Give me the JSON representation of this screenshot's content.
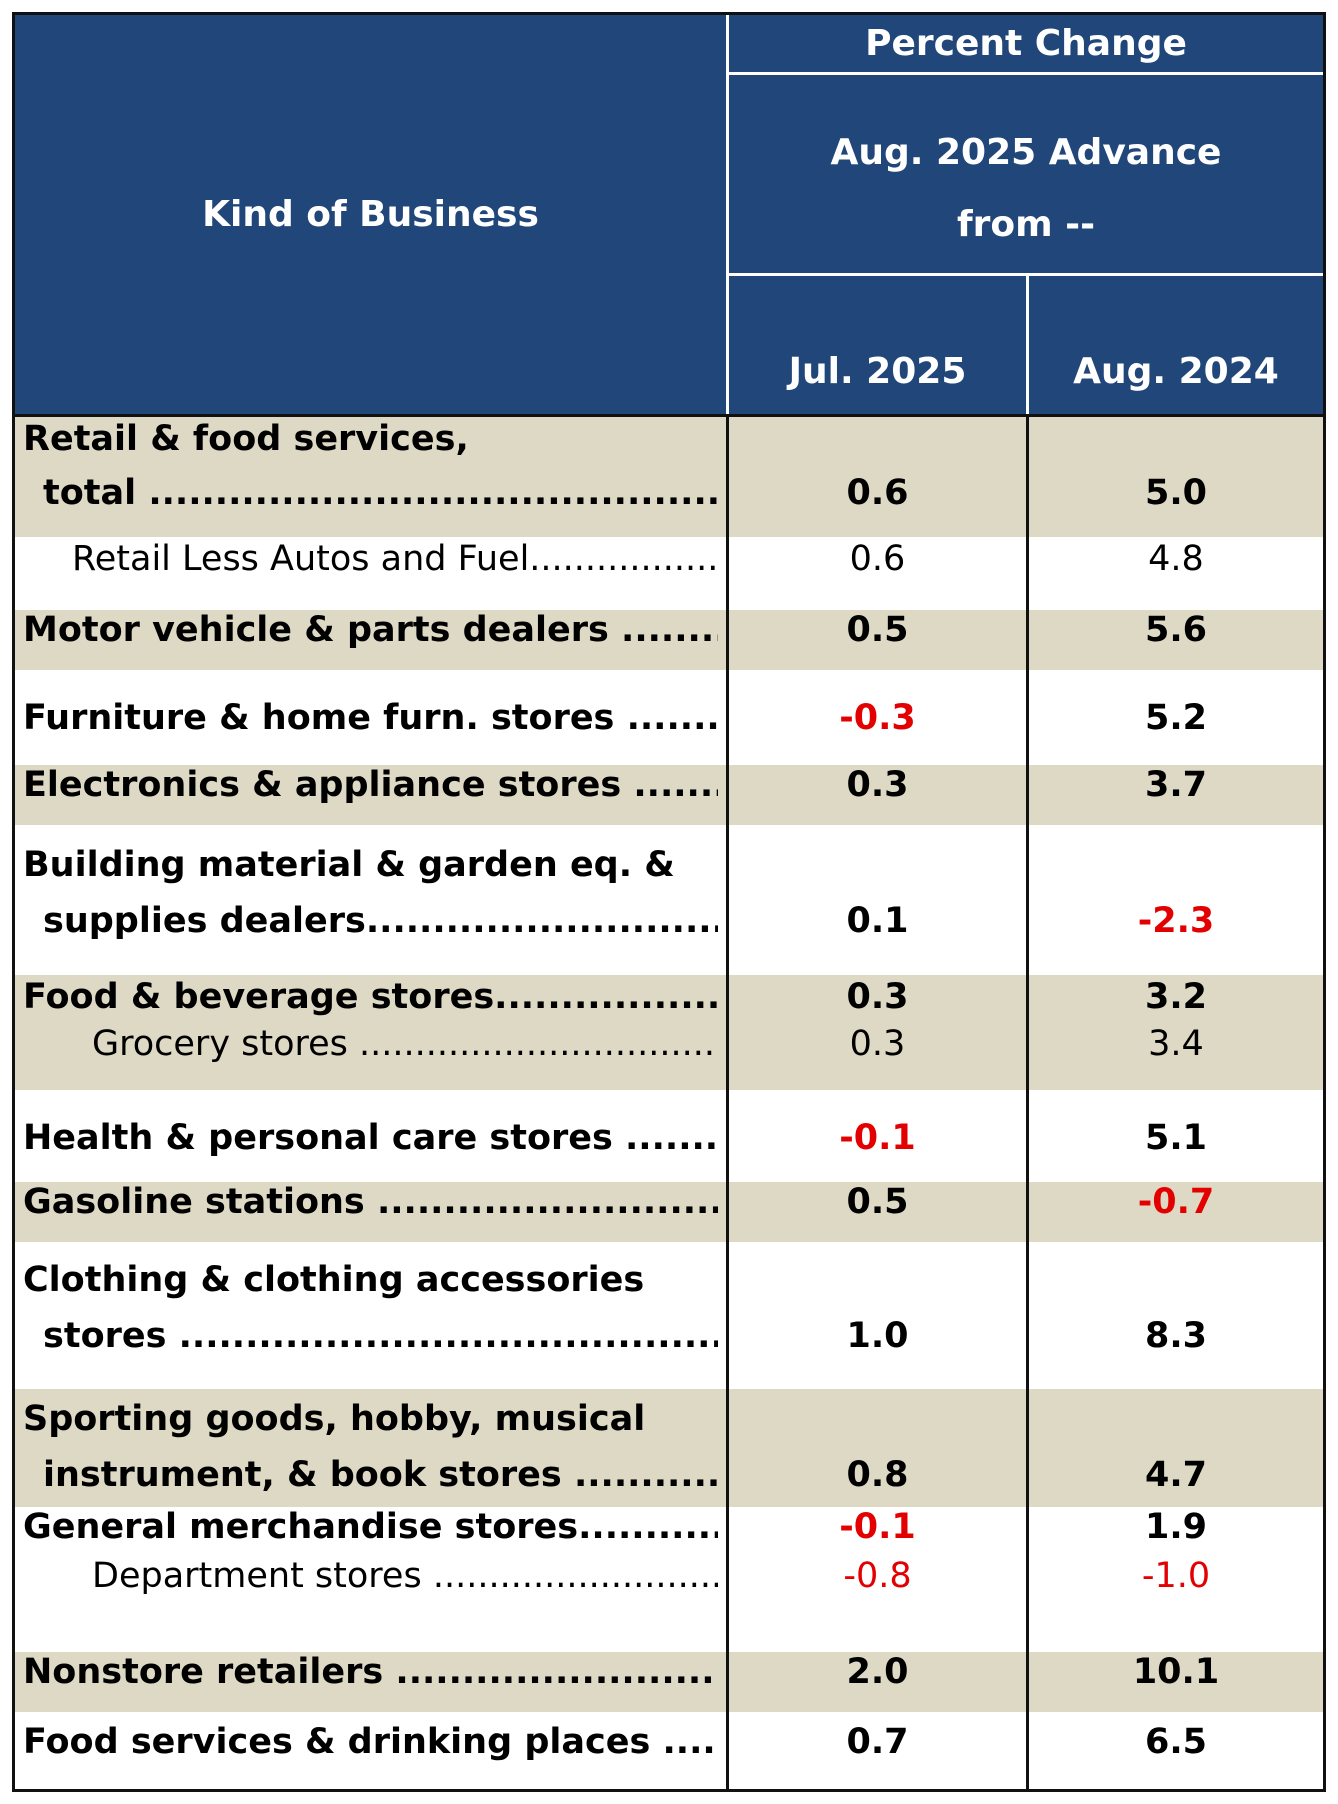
{
  "header": {
    "kind_of_business": "Kind of Business",
    "percent_change": "Percent Change",
    "advance_line1": "Aug. 2025 Advance",
    "advance_line2": "from --",
    "col1": "Jul. 2025",
    "col2": "Aug. 2024"
  },
  "rows": [
    {
      "line1": "Retail & food services,",
      "line2": "total ",
      "leader2": "........................................................................",
      "bold": true,
      "jul": "0.6",
      "aug": "5.0"
    },
    {
      "line1": "Retail Less Autos and Fuel",
      "leader1": "...............................",
      "bold": false,
      "jul": "0.6",
      "aug": "4.8"
    },
    {
      "line1": "Motor vehicle & parts dealers ",
      "leader1": "........................................",
      "bold": true,
      "jul": "0.5",
      "aug": "5.6"
    },
    {
      "line1": "Furniture & home furn. stores ",
      "leader1": "........................................",
      "bold": true,
      "jul": "-0.3",
      "aug": "5.2"
    },
    {
      "line1": "Electronics & appliance stores ",
      "leader1": "........................................",
      "bold": true,
      "jul": "0.3",
      "aug": "3.7"
    },
    {
      "line1": "Building material & garden eq. &",
      "line2": "supplies dealers",
      "leader2": "........................................................................",
      "bold": true,
      "jul": "0.1",
      "aug": "-2.3"
    },
    {
      "line1": "Food & beverage stores",
      "leader1": "........................................................",
      "bold": true,
      "jul": "0.3",
      "aug": "3.2"
    },
    {
      "line1": "Grocery stores ",
      "leader1": "........................................................",
      "bold": false,
      "jul": "0.3",
      "aug": "3.4"
    },
    {
      "line1": "Health & personal care stores ",
      "leader1": "........................................",
      "bold": true,
      "jul": "-0.1",
      "aug": "5.1"
    },
    {
      "line1": "Gasoline stations ",
      "leader1": "........................................................................",
      "bold": true,
      "jul": "0.5",
      "aug": "-0.7"
    },
    {
      "line1": "Clothing & clothing accessories",
      "line2": "stores ",
      "leader2": "........................................................................",
      "bold": true,
      "jul": "1.0",
      "aug": "8.3"
    },
    {
      "line1": "Sporting goods, hobby, musical",
      "line2": "instrument, & book stores ",
      "leader2": "........................................",
      "bold": true,
      "jul": "0.8",
      "aug": "4.7"
    },
    {
      "line1": "General merchandise stores",
      "leader1": "........................................",
      "bold": true,
      "jul": "-0.1",
      "aug": "1.9"
    },
    {
      "line1": "Department stores ",
      "leader1": "........................................................",
      "bold": false,
      "jul": "-0.8",
      "aug": "-1.0"
    },
    {
      "line1": "Nonstore retailers ",
      "leader1": "........................................................................",
      "bold": true,
      "jul": "2.0",
      "aug": "10.1"
    },
    {
      "line1": "Food services & drinking places ",
      "leader1": "........................................",
      "bold": true,
      "jul": "0.7",
      "aug": "6.5"
    }
  ]
}
